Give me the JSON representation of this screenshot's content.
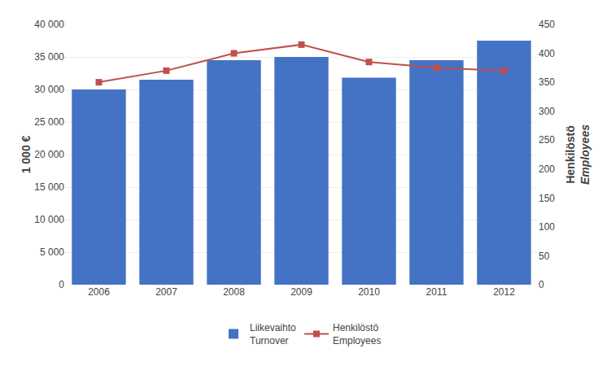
{
  "chart_data": {
    "type": "bar",
    "categories": [
      "2006",
      "2007",
      "2008",
      "2009",
      "2010",
      "2011",
      "2012"
    ],
    "series": [
      {
        "name": "Liikevaihto\nTurnover",
        "type": "bar",
        "color": "#4472C4",
        "values": [
          30000,
          31500,
          34500,
          35000,
          31800,
          34500,
          37500
        ]
      },
      {
        "name": "Henkilöstö\nEmployees",
        "type": "line",
        "axis": "y2",
        "color": "#C0504D",
        "marker": "square",
        "values": [
          350,
          370,
          400,
          415,
          385,
          375,
          370
        ]
      }
    ],
    "ylabel": "1 000 €",
    "y2label": "Henkilöstö\nEmployees",
    "ylim": [
      0,
      40000
    ],
    "yticks": [
      0,
      {
        "value": 5000,
        "label": "5 000"
      },
      {
        "value": 10000,
        "label": "10 000"
      },
      {
        "value": 15000,
        "label": "15 000"
      },
      {
        "value": 20000,
        "label": "20 000"
      },
      {
        "value": 25000,
        "label": "25 000"
      },
      {
        "value": 30000,
        "label": "30 000"
      },
      {
        "value": 35000,
        "label": "35 000"
      },
      {
        "value": 40000,
        "label": "40 000"
      }
    ],
    "y2lim": [
      0,
      450
    ],
    "y2ticks": [
      0,
      50,
      100,
      150,
      200,
      250,
      300,
      350,
      400,
      450
    ],
    "grid": true,
    "legend": "bottom"
  }
}
